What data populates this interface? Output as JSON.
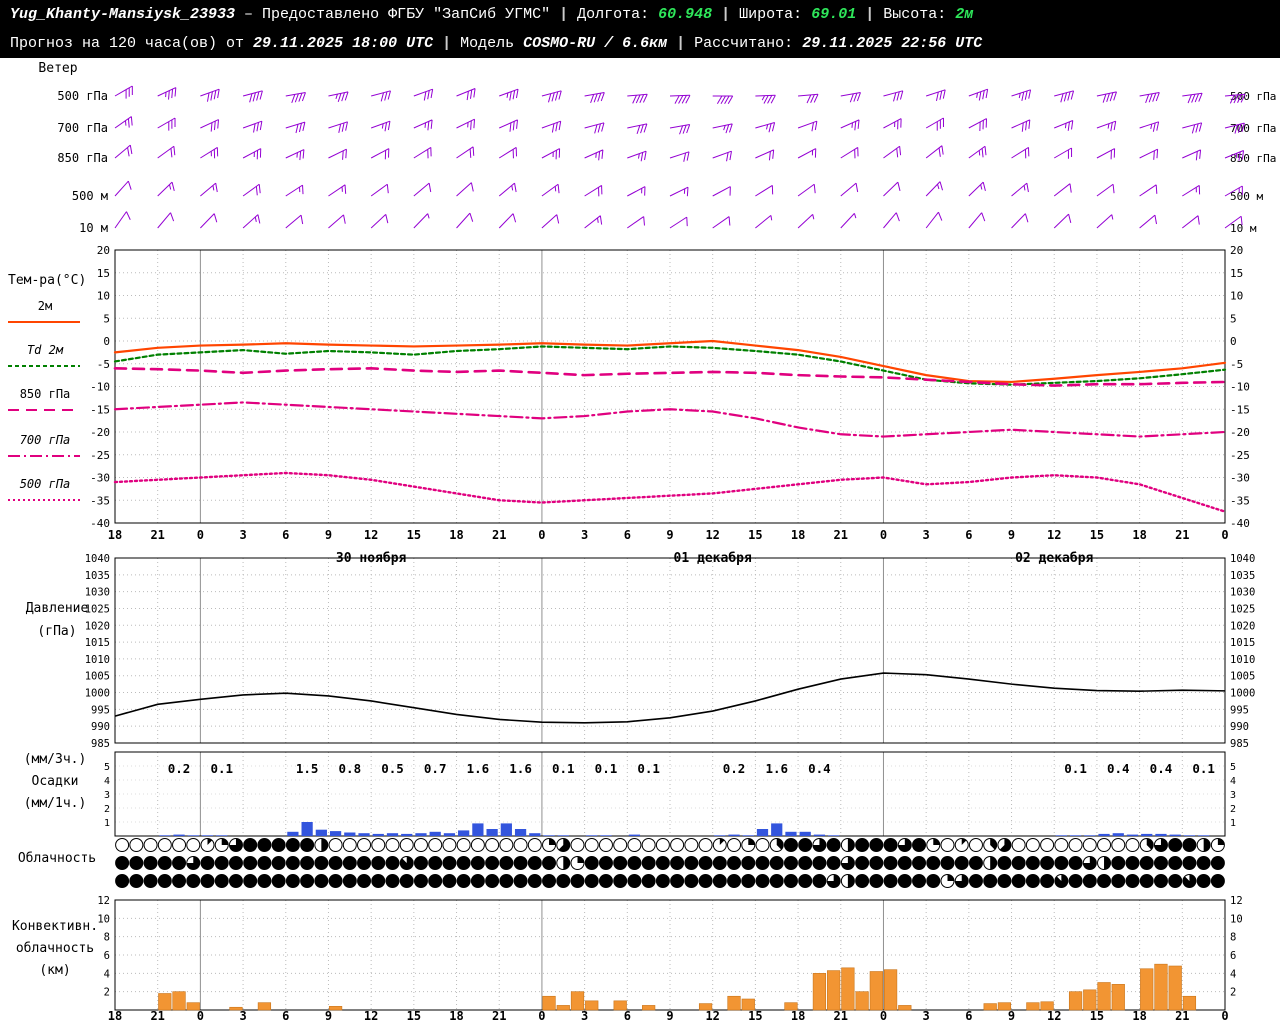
{
  "header": {
    "sep": "|",
    "line1": {
      "station": "Yug_Khanty-Mansiysk_23933",
      "provider": "– Предоставлено ФГБУ \"ЗапСиб УГМС\"",
      "lon_label": "Долгота:",
      "lon": "60.948",
      "lat_label": "Широта:",
      "lat": "69.01",
      "alt_label": "Высота:",
      "alt": "2м"
    },
    "line2": {
      "forecast_label": "Прогноз на 120 часа(ов) от",
      "forecast_time": "29.11.2025 18:00 UTC",
      "model_label": "Модель",
      "model": "COSMO-RU / 6.6км",
      "calc_label": "Рассчитано:",
      "calc_time": "29.11.2025 22:56 UTC"
    }
  },
  "panel_labels": {
    "wind": "Ветер",
    "temperature": "Тем-ра(°C)",
    "pressure": [
      "Давление",
      "(гПа)"
    ],
    "precipitation": [
      "(мм/3ч.)",
      "Осадки",
      "(мм/1ч.)"
    ],
    "cloudiness": "Облачность",
    "convective": [
      "Конвективн.",
      "облачность",
      "(км)"
    ]
  },
  "chart_data": {
    "type": "meteogram",
    "x": {
      "total_hours": 78,
      "hours_step": 3,
      "tick_labels": [
        "18",
        "21",
        "0",
        "3",
        "6",
        "9",
        "12",
        "15",
        "18",
        "21",
        "0",
        "3",
        "6",
        "9",
        "12",
        "15",
        "18",
        "21",
        "0",
        "3",
        "6",
        "9",
        "12",
        "15",
        "18",
        "21",
        "0"
      ],
      "day_lines_h": [
        6,
        30,
        54
      ],
      "date_labels": [
        {
          "label": "30 ноября",
          "h": 18
        },
        {
          "label": "01 декабря",
          "h": 42
        },
        {
          "label": "02 декабря",
          "h": 66
        }
      ]
    },
    "wind": {
      "levels": [
        {
          "label": "500 гПа",
          "speeds_kt": [
            30,
            35,
            38,
            40,
            38,
            35,
            32,
            30,
            32,
            35,
            38,
            40,
            42,
            40,
            38,
            35,
            32,
            30,
            28,
            30,
            33,
            35,
            38,
            40,
            42,
            40,
            38
          ],
          "dirs_deg": [
            60,
            65,
            70,
            75,
            80,
            78,
            75,
            70,
            68,
            70,
            75,
            80,
            85,
            88,
            90,
            88,
            85,
            80,
            75,
            72,
            70,
            72,
            75,
            78,
            80,
            82,
            85
          ]
        },
        {
          "label": "700 гПа",
          "speeds_kt": [
            25,
            28,
            30,
            32,
            30,
            28,
            26,
            24,
            26,
            28,
            30,
            32,
            30,
            28,
            26,
            24,
            22,
            24,
            26,
            28,
            30,
            28,
            26,
            25,
            26,
            28,
            30
          ],
          "dirs_deg": [
            55,
            60,
            65,
            70,
            73,
            72,
            70,
            66,
            64,
            66,
            70,
            75,
            78,
            80,
            78,
            74,
            70,
            66,
            62,
            60,
            62,
            66,
            68,
            70,
            72,
            75,
            76
          ]
        },
        {
          "label": "850 гПа",
          "speeds_kt": [
            20,
            22,
            25,
            27,
            25,
            22,
            20,
            18,
            20,
            22,
            25,
            27,
            25,
            22,
            20,
            18,
            16,
            18,
            20,
            22,
            24,
            22,
            20,
            18,
            20,
            22,
            24
          ],
          "dirs_deg": [
            50,
            54,
            58,
            62,
            65,
            64,
            62,
            58,
            56,
            58,
            62,
            66,
            70,
            72,
            70,
            66,
            62,
            58,
            54,
            52,
            54,
            58,
            60,
            62,
            64,
            66,
            68
          ]
        },
        {
          "label": "500 м",
          "speeds_kt": [
            12,
            14,
            16,
            18,
            16,
            14,
            12,
            10,
            12,
            14,
            16,
            18,
            16,
            14,
            12,
            10,
            9,
            10,
            12,
            14,
            16,
            14,
            12,
            10,
            12,
            14,
            16
          ],
          "dirs_deg": [
            42,
            46,
            50,
            54,
            57,
            56,
            54,
            50,
            48,
            50,
            54,
            58,
            62,
            64,
            62,
            58,
            54,
            50,
            46,
            44,
            46,
            50,
            52,
            54,
            56,
            58,
            60
          ]
        },
        {
          "label": "10 м",
          "speeds_kt": [
            8,
            10,
            12,
            13,
            12,
            10,
            8,
            7,
            8,
            10,
            12,
            13,
            12,
            10,
            8,
            7,
            6,
            7,
            8,
            10,
            11,
            10,
            8,
            7,
            8,
            10,
            11
          ],
          "dirs_deg": [
            35,
            40,
            44,
            48,
            50,
            49,
            47,
            44,
            42,
            44,
            48,
            52,
            55,
            57,
            55,
            51,
            47,
            43,
            40,
            38,
            40,
            44,
            46,
            48,
            50,
            52,
            54
          ]
        }
      ]
    },
    "temperature": {
      "ylim": [
        -40,
        20
      ],
      "ytick_step": 5,
      "series": [
        {
          "name": "2м",
          "color": "#ff4500",
          "style": "solid",
          "width": 2.2,
          "values": [
            -2.5,
            -1.5,
            -1.0,
            -0.8,
            -0.5,
            -0.8,
            -1.0,
            -1.2,
            -1.0,
            -0.8,
            -0.5,
            -0.8,
            -1.0,
            -0.5,
            0.0,
            -1.0,
            -2.0,
            -3.5,
            -5.5,
            -7.5,
            -8.8,
            -9.0,
            -8.3,
            -7.5,
            -6.8,
            -6.0,
            -4.8
          ]
        },
        {
          "name": "Td 2м",
          "color": "#008000",
          "style": "dashed",
          "width": 2.2,
          "values": [
            -4.5,
            -3.0,
            -2.5,
            -2.0,
            -2.8,
            -2.2,
            -2.5,
            -3.0,
            -2.2,
            -1.8,
            -1.2,
            -1.5,
            -1.8,
            -1.2,
            -1.5,
            -2.2,
            -3.0,
            -4.5,
            -6.5,
            -8.5,
            -9.3,
            -9.6,
            -9.2,
            -8.8,
            -8.2,
            -7.3,
            -6.3
          ]
        },
        {
          "name": "850 гПа",
          "color": "#e0007f",
          "style": "longdash",
          "width": 2.6,
          "values": [
            -6.0,
            -6.2,
            -6.5,
            -7.0,
            -6.5,
            -6.2,
            -6.0,
            -6.5,
            -6.8,
            -6.5,
            -7.0,
            -7.5,
            -7.2,
            -7.0,
            -6.8,
            -7.0,
            -7.5,
            -7.8,
            -8.0,
            -8.5,
            -9.0,
            -9.5,
            -9.8,
            -9.5,
            -9.5,
            -9.2,
            -9.0
          ]
        },
        {
          "name": "700 гПа",
          "color": "#e0007f",
          "style": "dashdot",
          "width": 2.2,
          "values": [
            -15.0,
            -14.5,
            -14.0,
            -13.5,
            -14.0,
            -14.5,
            -15.0,
            -15.5,
            -16.0,
            -16.5,
            -17.0,
            -16.5,
            -15.5,
            -15.0,
            -15.5,
            -17.0,
            -19.0,
            -20.5,
            -21.0,
            -20.5,
            -20.0,
            -19.5,
            -20.0,
            -20.5,
            -21.0,
            -20.5,
            -20.0
          ]
        },
        {
          "name": "500 гПа",
          "color": "#e0007f",
          "style": "dotted",
          "width": 2.4,
          "values": [
            -31.0,
            -30.5,
            -30.0,
            -29.5,
            -29.0,
            -29.5,
            -30.5,
            -32.0,
            -33.5,
            -35.0,
            -35.5,
            -35.0,
            -34.5,
            -34.0,
            -33.5,
            -32.5,
            -31.5,
            -30.5,
            -30.0,
            -31.5,
            -31.0,
            -30.0,
            -29.5,
            -30.0,
            -31.5,
            -34.5,
            -37.5
          ]
        }
      ]
    },
    "pressure": {
      "ylim": [
        985,
        1040
      ],
      "ytick_step": 5,
      "values": [
        993.0,
        996.5,
        998.0,
        999.3,
        999.8,
        999.0,
        997.5,
        995.5,
        993.5,
        992.0,
        991.2,
        991.0,
        991.3,
        992.5,
        994.5,
        997.5,
        1001.0,
        1004.0,
        1005.8,
        1005.3,
        1004.0,
        1002.5,
        1001.3,
        1000.6,
        1000.4,
        1000.7,
        1000.5
      ]
    },
    "precipitation": {
      "ylim": [
        0,
        5
      ],
      "amounts_3h": [
        null,
        0.2,
        0.1,
        null,
        1.5,
        0.8,
        0.5,
        0.7,
        1.6,
        1.6,
        0.1,
        0.1,
        0.1,
        null,
        0.2,
        1.6,
        0.4,
        null,
        null,
        null,
        null,
        null,
        0.1,
        0.4,
        0.4,
        0.1
      ],
      "hourly_bars": [
        0,
        0,
        0,
        0.05,
        0.1,
        0.05,
        0.05,
        0.05,
        0,
        0,
        0,
        0,
        0.3,
        1.0,
        0.45,
        0.35,
        0.25,
        0.2,
        0.15,
        0.2,
        0.15,
        0.2,
        0.3,
        0.2,
        0.4,
        0.9,
        0.5,
        0.9,
        0.5,
        0.2,
        0.05,
        0.05,
        0,
        0.05,
        0.05,
        0,
        0.1,
        0,
        0,
        0,
        0,
        0,
        0.05,
        0.1,
        0.05,
        0.5,
        0.9,
        0.3,
        0.3,
        0.1,
        0.05,
        0,
        0,
        0,
        0,
        0,
        0,
        0,
        0,
        0,
        0,
        0,
        0,
        0,
        0,
        0,
        0.05,
        0.05,
        0.05,
        0.15,
        0.2,
        0.1,
        0.15,
        0.15,
        0.1,
        0.05,
        0.05,
        0
      ]
    },
    "cloudiness": {
      "okta_rows": [
        "000000126888884000000000000000250000000000102038868488868201035000000000368842",
        "888886888888888888887888888888842888888888888888888688888888848888886488888888",
        "888888888888888888888888888888888888888888888888886488888826888888788888888788"
      ]
    },
    "convective": {
      "ylim": [
        0,
        12
      ],
      "yticks": [
        2,
        4,
        6,
        8,
        10,
        12
      ],
      "hourly_km": [
        0,
        0,
        0,
        1.8,
        2.0,
        0.8,
        0,
        0,
        0.3,
        0,
        0.8,
        0,
        0,
        0,
        0,
        0.4,
        0,
        0,
        0,
        0,
        0,
        0,
        0,
        0,
        0,
        0,
        0,
        0,
        0,
        0,
        1.5,
        0.5,
        2.0,
        1.0,
        0,
        1.0,
        0,
        0.5,
        0,
        0,
        0,
        0.7,
        0,
        1.5,
        1.2,
        0,
        0,
        0.8,
        0,
        4.0,
        4.3,
        4.6,
        2.0,
        4.2,
        4.4,
        0.5,
        0,
        0,
        0,
        0,
        0,
        0.7,
        0.8,
        0,
        0.8,
        0.9,
        0,
        2.0,
        2.2,
        3.0,
        2.8,
        0,
        4.5,
        5.0,
        4.8,
        1.5,
        0,
        0
      ]
    },
    "colors": {
      "wind_barb": "#9400d3",
      "pressure_line": "#000000",
      "precip_bar": "#3355dd",
      "convective_bar": "#f29533",
      "convective_edge": "#c9751a",
      "grid": "#bbbbbb",
      "day_line": "#909090",
      "box": "#000000"
    }
  }
}
